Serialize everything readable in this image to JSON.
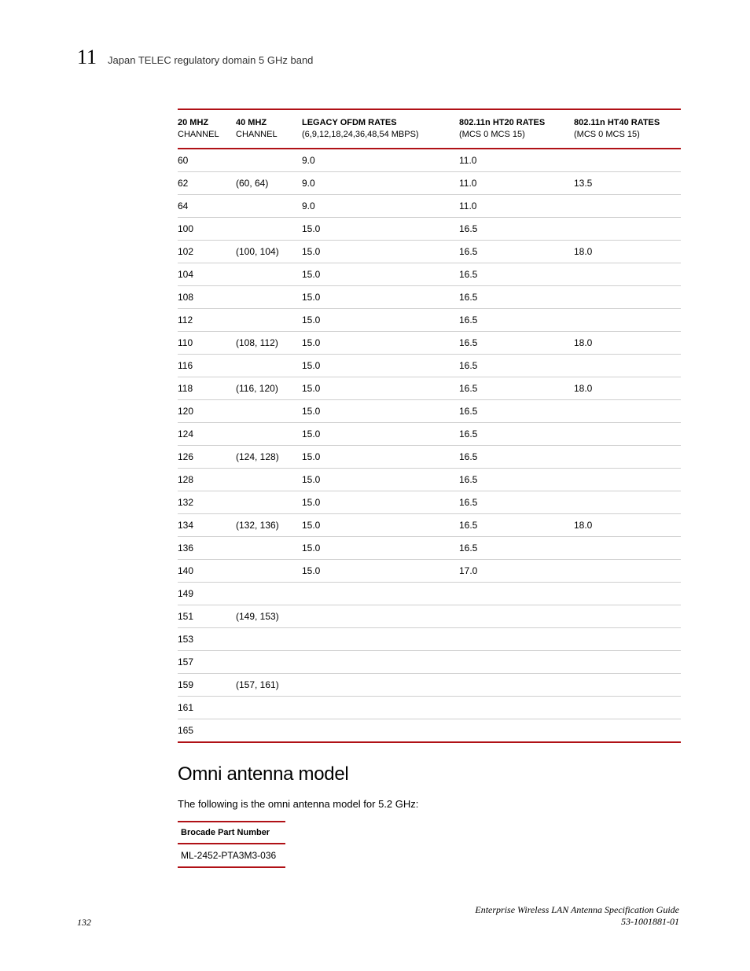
{
  "header": {
    "chapter_number": "11",
    "chapter_title": "Japan TELEC regulatory domain 5 GHz band"
  },
  "table": {
    "accent_color": "#b01116",
    "row_border_color": "#cfcfcf",
    "columns": [
      {
        "line1": "20 MHZ",
        "line2": "CHANNEL"
      },
      {
        "line1": "40 MHZ",
        "line2": "CHANNEL"
      },
      {
        "line1": "LEGACY OFDM RATES",
        "line2": "(6,9,12,18,24,36,48,54 MBPS)"
      },
      {
        "line1": "802.11n HT20 RATES",
        "line2": "(MCS 0  MCS 15)"
      },
      {
        "line1": "802.11n HT40 RATES",
        "line2": "(MCS 0  MCS 15)"
      }
    ],
    "rows": [
      {
        "c20": "60",
        "c40": "",
        "legacy": "9.0",
        "ht20": "11.0",
        "ht40": ""
      },
      {
        "c20": "62",
        "c40": "(60, 64)",
        "legacy": "9.0",
        "ht20": "11.0",
        "ht40": "13.5"
      },
      {
        "c20": "64",
        "c40": "",
        "legacy": "9.0",
        "ht20": "11.0",
        "ht40": ""
      },
      {
        "c20": "100",
        "c40": "",
        "legacy": "15.0",
        "ht20": "16.5",
        "ht40": ""
      },
      {
        "c20": "102",
        "c40": "(100, 104)",
        "legacy": "15.0",
        "ht20": "16.5",
        "ht40": "18.0"
      },
      {
        "c20": "104",
        "c40": "",
        "legacy": "15.0",
        "ht20": "16.5",
        "ht40": ""
      },
      {
        "c20": "108",
        "c40": "",
        "legacy": "15.0",
        "ht20": "16.5",
        "ht40": ""
      },
      {
        "c20": "112",
        "c40": "",
        "legacy": "15.0",
        "ht20": "16.5",
        "ht40": ""
      },
      {
        "c20": "110",
        "c40": "(108, 112)",
        "legacy": "15.0",
        "ht20": "16.5",
        "ht40": "18.0"
      },
      {
        "c20": "116",
        "c40": "",
        "legacy": "15.0",
        "ht20": "16.5",
        "ht40": ""
      },
      {
        "c20": "118",
        "c40": "(116, 120)",
        "legacy": "15.0",
        "ht20": "16.5",
        "ht40": "18.0"
      },
      {
        "c20": "120",
        "c40": "",
        "legacy": "15.0",
        "ht20": "16.5",
        "ht40": ""
      },
      {
        "c20": "124",
        "c40": "",
        "legacy": "15.0",
        "ht20": "16.5",
        "ht40": ""
      },
      {
        "c20": "126",
        "c40": "(124, 128)",
        "legacy": "15.0",
        "ht20": "16.5",
        "ht40": ""
      },
      {
        "c20": "128",
        "c40": "",
        "legacy": "15.0",
        "ht20": "16.5",
        "ht40": ""
      },
      {
        "c20": "132",
        "c40": "",
        "legacy": "15.0",
        "ht20": "16.5",
        "ht40": ""
      },
      {
        "c20": "134",
        "c40": "(132, 136)",
        "legacy": "15.0",
        "ht20": "16.5",
        "ht40": "18.0"
      },
      {
        "c20": "136",
        "c40": "",
        "legacy": "15.0",
        "ht20": "16.5",
        "ht40": ""
      },
      {
        "c20": "140",
        "c40": "",
        "legacy": "15.0",
        "ht20": "17.0",
        "ht40": ""
      },
      {
        "c20": "149",
        "c40": "",
        "legacy": "",
        "ht20": "",
        "ht40": ""
      },
      {
        "c20": "151",
        "c40": "(149, 153)",
        "legacy": "",
        "ht20": "",
        "ht40": ""
      },
      {
        "c20": "153",
        "c40": "",
        "legacy": "",
        "ht20": "",
        "ht40": ""
      },
      {
        "c20": "157",
        "c40": "",
        "legacy": "",
        "ht20": "",
        "ht40": ""
      },
      {
        "c20": "159",
        "c40": "(157, 161)",
        "legacy": "",
        "ht20": "",
        "ht40": ""
      },
      {
        "c20": "161",
        "c40": "",
        "legacy": "",
        "ht20": "",
        "ht40": ""
      },
      {
        "c20": "165",
        "c40": "",
        "legacy": "",
        "ht20": "",
        "ht40": ""
      }
    ]
  },
  "section": {
    "heading": "Omni antenna model",
    "intro": "The following is the omni antenna model for 5.2 GHz:",
    "part_header": "Brocade Part Number",
    "part_value": "ML-2452-PTA3M3-036"
  },
  "footer": {
    "page_number": "132",
    "doc_title": "Enterprise Wireless LAN Antenna Specification Guide",
    "doc_number": "53-1001881-01"
  }
}
